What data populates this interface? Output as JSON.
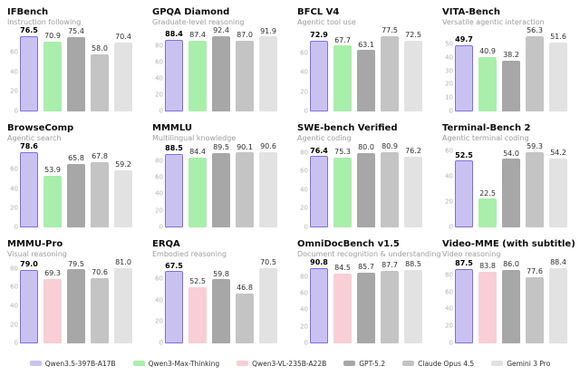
{
  "page": {
    "background": "#ffffff"
  },
  "legend": {
    "items": [
      {
        "label": "Qwen3.5-397B-A17B",
        "color": "#c9c2f1",
        "border": "#7f6fe4"
      },
      {
        "label": "Qwen3-Max-Thinking",
        "color": "#a9eeab",
        "border": ""
      },
      {
        "label": "Qwen3-VL-235B-A22B",
        "color": "#f9ced6",
        "border": ""
      },
      {
        "label": "GPT-5.2",
        "color": "#a7a7a7",
        "border": ""
      },
      {
        "label": "Claude Opus 4.5",
        "color": "#c4c4c4",
        "border": ""
      },
      {
        "label": "Gemini 3 Pro",
        "color": "#e2e2e2",
        "border": ""
      }
    ]
  },
  "chart_data": [
    {
      "type": "bar",
      "title": "IFBench",
      "subtitle": "Instruction following",
      "model_indices": [
        0,
        1,
        3,
        4,
        5
      ],
      "values": [
        76.5,
        70.9,
        75.4,
        58.0,
        70.4
      ],
      "yticks": [
        0,
        20,
        40,
        60
      ],
      "ylim": [
        0,
        81
      ],
      "grid": false,
      "legend_position": "bottom"
    },
    {
      "type": "bar",
      "title": "GPQA Diamond",
      "subtitle": "Graduate-level reasoning",
      "model_indices": [
        0,
        1,
        3,
        4,
        5
      ],
      "values": [
        88.4,
        87.4,
        92.4,
        87.0,
        91.9
      ],
      "yticks": [
        0,
        20,
        40,
        60,
        80
      ],
      "ylim": [
        0,
        98
      ],
      "grid": false,
      "legend_position": "bottom"
    },
    {
      "type": "bar",
      "title": "BFCL V4",
      "subtitle": "Agentic tool use",
      "model_indices": [
        0,
        1,
        3,
        4,
        5
      ],
      "values": [
        72.9,
        67.7,
        63.1,
        77.5,
        72.5
      ],
      "yticks": [
        0,
        20,
        40,
        60
      ],
      "ylim": [
        0,
        82
      ],
      "grid": false,
      "legend_position": "bottom"
    },
    {
      "type": "bar",
      "title": "VITA-Bench",
      "subtitle": "Versatile agentic interaction",
      "model_indices": [
        0,
        1,
        3,
        4,
        5
      ],
      "values": [
        49.7,
        40.9,
        38.2,
        56.3,
        51.6
      ],
      "yticks": [
        0,
        10,
        20,
        30,
        40,
        50
      ],
      "ylim": [
        0,
        59.5
      ],
      "grid": false,
      "legend_position": "bottom"
    },
    {
      "type": "bar",
      "title": "BrowseComp",
      "subtitle": "Agentic search",
      "model_indices": [
        0,
        1,
        3,
        4,
        5
      ],
      "values": [
        78.6,
        53.9,
        65.8,
        67.8,
        59.2
      ],
      "yticks": [
        0,
        20,
        40,
        60
      ],
      "ylim": [
        0,
        83
      ],
      "grid": false,
      "legend_position": "bottom"
    },
    {
      "type": "bar",
      "title": "MMMLU",
      "subtitle": "Multilingual knowledge",
      "model_indices": [
        0,
        1,
        3,
        4,
        5
      ],
      "values": [
        88.5,
        84.4,
        89.5,
        90.1,
        90.6
      ],
      "yticks": [
        0,
        20,
        40,
        60,
        80
      ],
      "ylim": [
        0,
        96
      ],
      "grid": false,
      "legend_position": "bottom"
    },
    {
      "type": "bar",
      "title": "SWE-bench Verified",
      "subtitle": "Agentic coding",
      "model_indices": [
        0,
        1,
        3,
        4,
        5
      ],
      "values": [
        76.4,
        75.3,
        80.0,
        80.9,
        76.2
      ],
      "yticks": [
        0,
        20,
        40,
        60,
        80
      ],
      "ylim": [
        0,
        85.5
      ],
      "grid": false,
      "legend_position": "bottom"
    },
    {
      "type": "bar",
      "title": "Terminal-Bench 2",
      "subtitle": "Agentic terminal coding",
      "model_indices": [
        0,
        1,
        3,
        4,
        5
      ],
      "values": [
        52.5,
        22.5,
        54.0,
        59.3,
        54.2
      ],
      "yticks": [
        0,
        20,
        40,
        60
      ],
      "ylim": [
        0,
        62.8
      ],
      "grid": false,
      "legend_position": "bottom"
    },
    {
      "type": "bar",
      "title": "MMMU-Pro",
      "subtitle": "Visual reasoning",
      "model_indices": [
        0,
        2,
        3,
        4,
        5
      ],
      "values": [
        79.0,
        69.3,
        79.5,
        70.6,
        81.0
      ],
      "yticks": [
        0,
        20,
        40,
        60,
        80
      ],
      "ylim": [
        0,
        85.8
      ],
      "grid": false,
      "legend_position": "bottom"
    },
    {
      "type": "bar",
      "title": "ERQA",
      "subtitle": "Embodied reasoning",
      "model_indices": [
        0,
        2,
        3,
        4,
        5
      ],
      "values": [
        67.5,
        52.5,
        59.8,
        46.8,
        70.5
      ],
      "yticks": [
        0,
        20,
        40,
        60
      ],
      "ylim": [
        0,
        74.6
      ],
      "grid": false,
      "legend_position": "bottom"
    },
    {
      "type": "bar",
      "title": "OmniDocBench v1.5",
      "subtitle": "Document recognition & understanding",
      "model_indices": [
        0,
        2,
        3,
        4,
        5
      ],
      "values": [
        90.8,
        84.5,
        85.7,
        87.7,
        88.5
      ],
      "yticks": [
        0,
        20,
        40,
        60,
        80
      ],
      "ylim": [
        0,
        96.2
      ],
      "grid": false,
      "legend_position": "bottom"
    },
    {
      "type": "bar",
      "title": "Video-MME (with subtitle)",
      "subtitle": "Video reasoning",
      "model_indices": [
        0,
        2,
        3,
        4,
        5
      ],
      "values": [
        87.5,
        83.8,
        86.0,
        77.6,
        88.4
      ],
      "yticks": [
        0,
        20,
        40,
        60,
        80
      ],
      "ylim": [
        0,
        93.6
      ],
      "grid": false,
      "legend_position": "bottom"
    }
  ]
}
